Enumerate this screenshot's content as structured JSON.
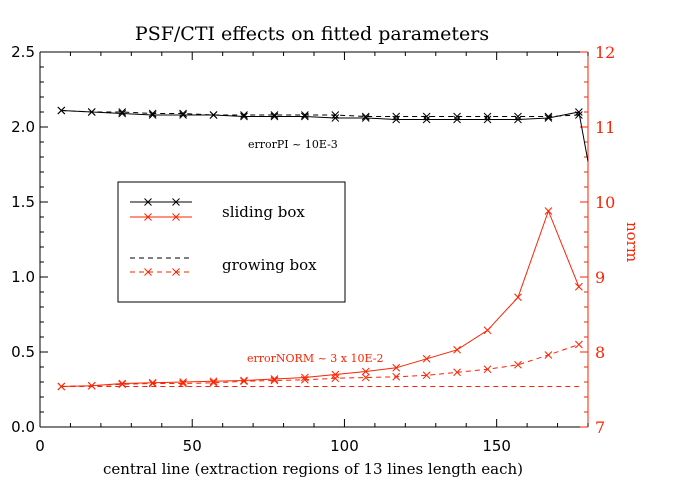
{
  "chart_data": {
    "type": "line",
    "title": "PSF/CTI effects on fitted parameters",
    "xlabel": "central line (extraction regions of 13 lines length each)",
    "ylabel_left": "",
    "ylabel_right": "norm",
    "xlim": [
      0,
      180
    ],
    "ylim_left": [
      0.0,
      2.5
    ],
    "ylim_right": [
      7,
      12
    ],
    "x_ticks": [
      "0",
      "50",
      "100",
      "150"
    ],
    "y_left_ticks": [
      "0.0",
      "0.5",
      "1.0",
      "1.5",
      "2.0",
      "2.5"
    ],
    "y_right_ticks": [
      "7",
      "8",
      "9",
      "10",
      "11",
      "12"
    ],
    "colors": {
      "axis_left": "#000000",
      "axis_right": "#ff2200",
      "series_black": "#000000",
      "series_red": "#ff2200"
    },
    "annotations": {
      "pi_error": "errorPI ~ 10E-3",
      "norm_error": "errorNORM ~ 3 x 10E-2"
    },
    "legend": {
      "placement": "center-left",
      "sliding_label": "sliding box",
      "growing_label": "growing box"
    },
    "x": [
      7,
      17,
      27,
      37,
      47,
      57,
      67,
      77,
      87,
      97,
      107,
      117,
      127,
      137,
      147,
      157,
      167,
      177
    ],
    "series": [
      {
        "key": "pi_sliding",
        "axis": "left",
        "color": "#000000",
        "dash": "solid",
        "marker": "x",
        "values": [
          2.11,
          2.1,
          2.09,
          2.08,
          2.08,
          2.08,
          2.07,
          2.07,
          2.07,
          2.06,
          2.06,
          2.05,
          2.05,
          2.05,
          2.05,
          2.05,
          2.06,
          2.1
        ],
        "tail": {
          "x": 180,
          "y": 1.77
        }
      },
      {
        "key": "pi_growing",
        "axis": "left",
        "color": "#000000",
        "dash": "dashed",
        "marker": "x",
        "values": [
          2.11,
          2.1,
          2.1,
          2.09,
          2.09,
          2.08,
          2.08,
          2.08,
          2.08,
          2.08,
          2.07,
          2.07,
          2.07,
          2.07,
          2.07,
          2.07,
          2.07,
          2.08
        ]
      },
      {
        "key": "norm_sliding",
        "axis": "right",
        "color": "#ff2200",
        "dash": "solid",
        "marker": "x",
        "values": [
          7.54,
          7.55,
          7.58,
          7.59,
          7.6,
          7.61,
          7.62,
          7.64,
          7.66,
          7.7,
          7.74,
          7.79,
          7.91,
          8.03,
          8.29,
          8.73,
          9.88,
          8.87
        ]
      },
      {
        "key": "norm_growing",
        "axis": "right",
        "color": "#ff2200",
        "dash": "dashed",
        "marker": "x",
        "values": [
          7.54,
          7.55,
          7.57,
          7.58,
          7.58,
          7.59,
          7.61,
          7.62,
          7.63,
          7.65,
          7.66,
          7.67,
          7.69,
          7.73,
          7.77,
          7.83,
          7.96,
          8.1
        ]
      },
      {
        "key": "norm_reference",
        "axis": "right",
        "color": "#ff2200",
        "dash": "dashed",
        "marker": "none",
        "values": [
          7.54,
          7.54,
          7.54,
          7.54,
          7.54,
          7.54,
          7.54,
          7.54,
          7.54,
          7.54,
          7.54,
          7.54,
          7.54,
          7.54,
          7.54,
          7.54,
          7.54,
          7.54
        ]
      }
    ]
  }
}
